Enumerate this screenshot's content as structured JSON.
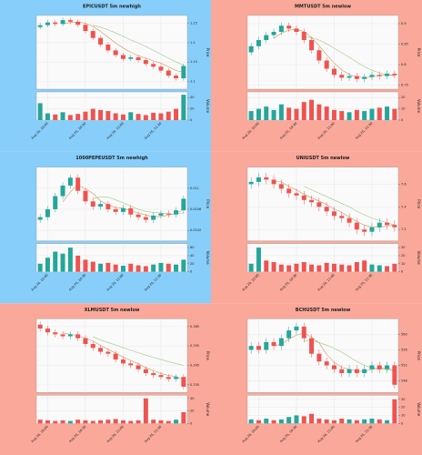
{
  "chart_data": [
    {
      "type": "candlestick",
      "title": "EPICUSDT 5m newhigh",
      "background": "#87cefa",
      "up_color": "#26a69a",
      "down_color": "#ef5350",
      "ma_colors": [
        "#d4955a",
        "#9cc87c"
      ],
      "grid": true,
      "price_label": "Price",
      "volume_label": "Volume",
      "ylim": [
        1.08,
        1.27
      ],
      "yticks": [
        1.1,
        1.15,
        1.2,
        1.25
      ],
      "vlim": [
        0,
        50
      ],
      "vticks": [
        0,
        20,
        40
      ],
      "xticks": [
        {
          "value": 1,
          "label": "Aug 26, 10:00"
        },
        {
          "value": 6,
          "label": "Aug 26, 10:30"
        },
        {
          "value": 11,
          "label": "Aug 26, 11:00"
        },
        {
          "value": 16,
          "label": "Aug 26, 11:30"
        }
      ],
      "open": [
        1.24,
        1.245,
        1.252,
        1.248,
        1.258,
        1.254,
        1.246,
        1.23,
        1.212,
        1.195,
        1.18,
        1.168,
        1.158,
        1.162,
        1.155,
        1.145,
        1.138,
        1.128,
        1.115,
        1.108
      ],
      "high": [
        1.251,
        1.258,
        1.258,
        1.264,
        1.264,
        1.26,
        1.252,
        1.236,
        1.218,
        1.201,
        1.186,
        1.174,
        1.168,
        1.168,
        1.161,
        1.151,
        1.144,
        1.134,
        1.121,
        1.146
      ],
      "low": [
        1.234,
        1.239,
        1.242,
        1.242,
        1.248,
        1.24,
        1.224,
        1.206,
        1.189,
        1.174,
        1.162,
        1.152,
        1.152,
        1.149,
        1.139,
        1.132,
        1.122,
        1.109,
        1.102,
        1.102
      ],
      "close": [
        1.245,
        1.252,
        1.248,
        1.258,
        1.254,
        1.246,
        1.23,
        1.212,
        1.195,
        1.18,
        1.168,
        1.158,
        1.162,
        1.155,
        1.145,
        1.138,
        1.128,
        1.115,
        1.108,
        1.14
      ],
      "volume": [
        30,
        12,
        10,
        14,
        9,
        11,
        15,
        20,
        18,
        16,
        12,
        10,
        14,
        11,
        9,
        13,
        12,
        15,
        20,
        45
      ],
      "ma": [
        [
          null,
          null,
          null,
          1.248,
          1.252,
          1.253,
          1.25,
          1.242,
          1.229,
          1.214,
          1.199,
          1.186,
          1.175,
          1.166,
          1.16,
          1.153,
          1.147,
          1.138,
          1.128,
          1.124
        ],
        [
          null,
          null,
          null,
          null,
          null,
          null,
          null,
          1.245,
          1.24,
          1.233,
          1.225,
          1.216,
          1.207,
          1.199,
          1.19,
          1.18,
          1.17,
          1.16,
          1.15,
          1.142
        ]
      ]
    },
    {
      "type": "candlestick",
      "title": "MMTUSDT 5m newlow",
      "background": "#f9a89a",
      "up_color": "#26a69a",
      "down_color": "#ef5350",
      "ma_colors": [
        "#d4955a",
        "#9cc87c"
      ],
      "grid": true,
      "price_label": "Price",
      "volume_label": "Volume",
      "ylim": [
        0.74,
        0.92
      ],
      "yticks": [
        0.75,
        0.8,
        0.85,
        0.9
      ],
      "vlim": [
        0,
        25
      ],
      "vticks": [
        0,
        10,
        20
      ],
      "xticks": [
        {
          "value": 1,
          "label": "Aug 26, 10:00"
        },
        {
          "value": 6,
          "label": "Aug 26, 10:30"
        },
        {
          "value": 11,
          "label": "Aug 26, 11:00"
        },
        {
          "value": 16,
          "label": "Aug 26, 11:30"
        }
      ],
      "open": [
        0.83,
        0.845,
        0.86,
        0.872,
        0.88,
        0.895,
        0.888,
        0.88,
        0.86,
        0.835,
        0.81,
        0.79,
        0.775,
        0.768,
        0.772,
        0.765,
        0.77,
        0.775,
        0.772,
        0.778
      ],
      "high": [
        0.853,
        0.868,
        0.88,
        0.888,
        0.903,
        0.903,
        0.896,
        0.888,
        0.868,
        0.843,
        0.818,
        0.798,
        0.783,
        0.78,
        0.78,
        0.778,
        0.783,
        0.783,
        0.786,
        0.786
      ],
      "low": [
        0.822,
        0.837,
        0.852,
        0.864,
        0.872,
        0.88,
        0.872,
        0.852,
        0.827,
        0.802,
        0.782,
        0.767,
        0.76,
        0.76,
        0.757,
        0.757,
        0.762,
        0.764,
        0.764,
        0.766
      ],
      "close": [
        0.845,
        0.86,
        0.872,
        0.88,
        0.895,
        0.888,
        0.88,
        0.86,
        0.835,
        0.81,
        0.79,
        0.775,
        0.768,
        0.772,
        0.765,
        0.77,
        0.775,
        0.772,
        0.778,
        0.774
      ],
      "volume": [
        8,
        10,
        12,
        9,
        14,
        11,
        10,
        16,
        18,
        14,
        12,
        9,
        8,
        7,
        9,
        8,
        10,
        11,
        12,
        10
      ],
      "ma": [
        [
          null,
          null,
          null,
          0.864,
          0.877,
          0.884,
          0.886,
          0.881,
          0.866,
          0.846,
          0.824,
          0.804,
          0.787,
          0.776,
          0.77,
          0.768,
          0.77,
          0.773,
          0.775,
          0.775
        ],
        [
          null,
          null,
          null,
          null,
          null,
          null,
          null,
          0.868,
          0.866,
          0.86,
          0.851,
          0.84,
          0.829,
          0.818,
          0.806,
          0.795,
          0.786,
          0.78,
          0.775,
          0.772
        ]
      ]
    },
    {
      "type": "candlestick",
      "title": "1000PEPEUSDT 5m newhigh",
      "background": "#87cefa",
      "up_color": "#26a69a",
      "down_color": "#ef5350",
      "ma_colors": [
        "#d4955a",
        "#9cc87c"
      ],
      "grid": true,
      "price_label": "Price",
      "volume_label": "Volume",
      "ylim": [
        0.01,
        0.0114
      ],
      "yticks": [
        0.0102,
        0.0106,
        0.011
      ],
      "vlim": [
        0,
        70
      ],
      "vticks": [
        0,
        20,
        40,
        60
      ],
      "xticks": [
        {
          "value": 1,
          "label": "Aug 26, 10:00"
        },
        {
          "value": 6,
          "label": "Aug 26, 10:30"
        },
        {
          "value": 11,
          "label": "Aug 26, 11:00"
        },
        {
          "value": 16,
          "label": "Aug 26, 11:30"
        }
      ],
      "open": [
        0.0104,
        0.01045,
        0.0106,
        0.01085,
        0.01105,
        0.0112,
        0.01095,
        0.01075,
        0.01065,
        0.0107,
        0.0106,
        0.01055,
        0.01062,
        0.0105,
        0.01045,
        0.0104,
        0.01048,
        0.01052,
        0.0105,
        0.01058
      ],
      "high": [
        0.01051,
        0.01066,
        0.01091,
        0.01111,
        0.01126,
        0.01126,
        0.01101,
        0.01081,
        0.01076,
        0.01076,
        0.01066,
        0.01068,
        0.01068,
        0.01056,
        0.01051,
        0.01054,
        0.01058,
        0.01058,
        0.01064,
        0.01086
      ],
      "low": [
        0.01034,
        0.01039,
        0.01054,
        0.01079,
        0.01099,
        0.01089,
        0.01069,
        0.01059,
        0.01059,
        0.01054,
        0.01049,
        0.01049,
        0.01044,
        0.01039,
        0.01034,
        0.01034,
        0.01042,
        0.01044,
        0.01044,
        0.01052
      ],
      "close": [
        0.01045,
        0.0106,
        0.01085,
        0.01105,
        0.0112,
        0.01095,
        0.01075,
        0.01065,
        0.0107,
        0.0106,
        0.01055,
        0.01062,
        0.0105,
        0.01045,
        0.0104,
        0.01048,
        0.01052,
        0.0105,
        0.01058,
        0.0108
      ],
      "volume": [
        20,
        35,
        50,
        45,
        60,
        40,
        30,
        25,
        20,
        22,
        18,
        15,
        20,
        16,
        14,
        18,
        22,
        20,
        18,
        30
      ],
      "ma": [
        [
          null,
          null,
          null,
          0.01074,
          0.01093,
          0.01106,
          0.01099,
          0.0109,
          0.01076,
          0.01068,
          0.01063,
          0.01062,
          0.01057,
          0.01053,
          0.01049,
          0.01046,
          0.01046,
          0.01049,
          0.01052,
          0.0106
        ],
        [
          null,
          null,
          null,
          null,
          null,
          null,
          null,
          0.01081,
          0.01083,
          0.01083,
          0.01078,
          0.01072,
          0.01066,
          0.0106,
          0.01056,
          0.01054,
          0.01053,
          0.01051,
          0.01051,
          0.01053
        ]
      ]
    },
    {
      "type": "candlestick",
      "title": "UNIUSDT 5m newlow",
      "background": "#f9a89a",
      "up_color": "#26a69a",
      "down_color": "#ef5350",
      "ma_colors": [
        "#d4955a",
        "#9cc87c"
      ],
      "grid": true,
      "price_label": "Price",
      "volume_label": "Volume",
      "ylim": [
        7.1,
        7.75
      ],
      "yticks": [
        7.2,
        7.4,
        7.6
      ],
      "vlim": [
        0,
        35
      ],
      "vticks": [
        0,
        10,
        20,
        30
      ],
      "xticks": [
        {
          "value": 1,
          "label": "Aug 26, 10:00"
        },
        {
          "value": 6,
          "label": "Aug 26, 10:30"
        },
        {
          "value": 11,
          "label": "Aug 26, 11:00"
        },
        {
          "value": 16,
          "label": "Aug 26, 11:30"
        }
      ],
      "open": [
        7.6,
        7.62,
        7.66,
        7.64,
        7.6,
        7.56,
        7.52,
        7.5,
        7.46,
        7.44,
        7.4,
        7.36,
        7.32,
        7.3,
        7.26,
        7.2,
        7.18,
        7.22,
        7.26,
        7.24
      ],
      "high": [
        7.66,
        7.7,
        7.7,
        7.68,
        7.64,
        7.6,
        7.56,
        7.54,
        7.5,
        7.48,
        7.44,
        7.4,
        7.36,
        7.34,
        7.3,
        7.24,
        7.26,
        7.3,
        7.3,
        7.28
      ],
      "low": [
        7.56,
        7.58,
        7.6,
        7.56,
        7.52,
        7.48,
        7.46,
        7.42,
        7.4,
        7.36,
        7.32,
        7.28,
        7.26,
        7.22,
        7.16,
        7.14,
        7.14,
        7.18,
        7.2,
        7.18
      ],
      "close": [
        7.62,
        7.66,
        7.64,
        7.6,
        7.56,
        7.52,
        7.5,
        7.46,
        7.44,
        7.4,
        7.36,
        7.32,
        7.3,
        7.26,
        7.2,
        7.18,
        7.22,
        7.26,
        7.24,
        7.22
      ],
      "volume": [
        10,
        30,
        14,
        12,
        9,
        8,
        10,
        12,
        9,
        8,
        11,
        10,
        9,
        8,
        12,
        14,
        9,
        8,
        7,
        10
      ],
      "ma": [
        [
          null,
          null,
          null,
          7.63,
          7.62,
          7.58,
          7.55,
          7.51,
          7.48,
          7.45,
          7.42,
          7.38,
          7.35,
          7.31,
          7.27,
          7.24,
          7.22,
          7.22,
          7.23,
          7.24
        ],
        [
          null,
          null,
          null,
          null,
          null,
          null,
          null,
          7.58,
          7.55,
          7.52,
          7.49,
          7.46,
          7.43,
          7.4,
          7.36,
          7.33,
          7.3,
          7.28,
          7.26,
          7.24
        ]
      ]
    },
    {
      "type": "candlestick",
      "title": "XLMUSDT 5m newlow",
      "background": "#f9a89a",
      "up_color": "#26a69a",
      "down_color": "#ef5350",
      "ma_colors": [
        "#d4955a",
        "#9cc87c"
      ],
      "grid": true,
      "price_label": "Price",
      "volume_label": "Volume",
      "ylim": [
        0.331,
        0.369
      ],
      "yticks": [
        0.335,
        0.345,
        0.355,
        0.365
      ],
      "vlim": [
        0,
        45
      ],
      "vticks": [
        0,
        20,
        40
      ],
      "xticks": [
        {
          "value": 1,
          "label": "Aug 26, 10:00"
        },
        {
          "value": 6,
          "label": "Aug 26, 10:30"
        },
        {
          "value": 11,
          "label": "Aug 26, 11:00"
        },
        {
          "value": 16,
          "label": "Aug 26, 11:30"
        }
      ],
      "open": [
        0.366,
        0.364,
        0.362,
        0.361,
        0.36,
        0.361,
        0.359,
        0.356,
        0.354,
        0.352,
        0.351,
        0.348,
        0.346,
        0.345,
        0.343,
        0.341,
        0.34,
        0.339,
        0.338,
        0.339
      ],
      "high": [
        0.3675,
        0.3655,
        0.3635,
        0.3625,
        0.3625,
        0.3625,
        0.3605,
        0.3575,
        0.3555,
        0.3535,
        0.3525,
        0.3495,
        0.3475,
        0.3465,
        0.3445,
        0.3425,
        0.3415,
        0.3405,
        0.3405,
        0.3405
      ],
      "low": [
        0.3625,
        0.3605,
        0.3595,
        0.3585,
        0.3585,
        0.3575,
        0.3545,
        0.3525,
        0.3505,
        0.3495,
        0.3465,
        0.3445,
        0.3435,
        0.3415,
        0.3395,
        0.3385,
        0.3375,
        0.3365,
        0.3365,
        0.3325
      ],
      "close": [
        0.364,
        0.362,
        0.361,
        0.36,
        0.361,
        0.359,
        0.356,
        0.354,
        0.352,
        0.351,
        0.348,
        0.346,
        0.345,
        0.343,
        0.341,
        0.34,
        0.339,
        0.338,
        0.339,
        0.334
      ],
      "volume": [
        6,
        5,
        4,
        5,
        4,
        6,
        5,
        4,
        5,
        6,
        7,
        5,
        4,
        5,
        40,
        6,
        5,
        4,
        6,
        18
      ],
      "ma": [
        [
          null,
          null,
          null,
          0.3618,
          0.361,
          0.3603,
          0.359,
          0.3575,
          0.3553,
          0.3533,
          0.3513,
          0.3493,
          0.3475,
          0.3458,
          0.3438,
          0.3423,
          0.3408,
          0.3398,
          0.3393,
          0.3375
        ],
        [
          null,
          null,
          null,
          null,
          null,
          null,
          null,
          0.3598,
          0.3581,
          0.3568,
          0.3555,
          0.3541,
          0.3528,
          0.3515,
          0.3503,
          0.3491,
          0.348,
          0.3469,
          0.3459,
          0.3449
        ]
      ]
    },
    {
      "type": "candlestick",
      "title": "BCHUSDT 5m newlow",
      "background": "#f9a89a",
      "up_color": "#26a69a",
      "down_color": "#ef5350",
      "ma_colors": [
        "#d4955a",
        "#9cc87c"
      ],
      "grid": true,
      "price_label": "Price",
      "volume_label": "Volume",
      "ylim": [
        545,
        564
      ],
      "yticks": [
        548,
        552,
        556,
        560
      ],
      "vlim": [
        0,
        35
      ],
      "vticks": [
        0,
        10,
        20,
        30
      ],
      "xticks": [
        {
          "value": 1,
          "label": "Aug 26, 10:00"
        },
        {
          "value": 6,
          "label": "Aug 26, 10:30"
        },
        {
          "value": 11,
          "label": "Aug 26, 11:00"
        },
        {
          "value": 16,
          "label": "Aug 26, 11:30"
        }
      ],
      "open": [
        556,
        557,
        556,
        558,
        557,
        559,
        561,
        562,
        559,
        555,
        553,
        552,
        551,
        550,
        551,
        550,
        551,
        552,
        551,
        552
      ],
      "high": [
        558,
        558,
        559,
        559,
        560,
        562,
        563,
        563,
        560,
        556,
        554,
        553,
        552,
        552,
        552,
        552,
        553,
        553,
        553,
        553
      ],
      "low": [
        555,
        555,
        555,
        556,
        556,
        558,
        560,
        558,
        554,
        552,
        551,
        550,
        549,
        549,
        549,
        549,
        550,
        550,
        550,
        546
      ],
      "close": [
        557,
        556,
        558,
        557,
        559,
        561,
        562,
        559,
        555,
        553,
        552,
        551,
        550,
        551,
        550,
        551,
        552,
        551,
        552,
        547
      ],
      "volume": [
        5,
        4,
        6,
        4,
        5,
        8,
        10,
        9,
        12,
        6,
        5,
        4,
        6,
        5,
        4,
        5,
        6,
        5,
        4,
        30
      ],
      "ma": [
        [
          null,
          null,
          null,
          557.0,
          557.5,
          558.8,
          559.8,
          560.3,
          559.3,
          557.8,
          554.8,
          552.8,
          551.5,
          551.0,
          550.5,
          550.5,
          551.0,
          551.0,
          551.5,
          550.5
        ],
        [
          null,
          null,
          null,
          null,
          null,
          null,
          null,
          558.4,
          558.4,
          557.9,
          557.2,
          556.4,
          555.4,
          554.2,
          553.0,
          552.0,
          551.4,
          551.1,
          550.9,
          550.5
        ]
      ]
    }
  ]
}
